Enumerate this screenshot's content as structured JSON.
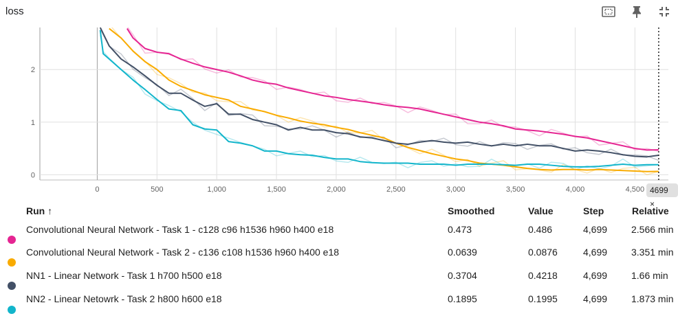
{
  "panel": {
    "title": "loss",
    "step_badge": "4699",
    "step_badge_close": "×"
  },
  "table": {
    "headers": {
      "run": "Run",
      "sort_arrow": "↑",
      "smoothed": "Smoothed",
      "value": "Value",
      "step": "Step",
      "relative": "Relative"
    },
    "rows": [
      {
        "name": "Convolutional Neural Network - Task 1 - c128 c96 h1536 h960 h400 e18",
        "smoothed": "0.473",
        "value": "0.486",
        "step": "4,699",
        "relative": "2.566 min",
        "color": "#e52592"
      },
      {
        "name": "Convolutional Neural Network - Task 2 - c136 c108 h1536 h960 h400 e18",
        "smoothed": "0.0639",
        "value": "0.0876",
        "step": "4,699",
        "relative": "3.351 min",
        "color": "#f9ab00"
      },
      {
        "name": "NN1 - Linear Network - Task 1 h700 h500 e18",
        "smoothed": "0.3704",
        "value": "0.4218",
        "step": "4,699",
        "relative": "1.66 min",
        "color": "#425066"
      },
      {
        "name": "NN2 - Linear Netowrk - Task 2 h800 h600 e18",
        "smoothed": "0.1895",
        "value": "0.1995",
        "step": "4,699",
        "relative": "1.873 min",
        "color": "#12b5cb"
      }
    ]
  },
  "chart_data": {
    "type": "line",
    "title": "loss",
    "xlim": [
      -480,
      4780
    ],
    "ylim": [
      -0.1,
      2.8
    ],
    "x_ticks": [
      0,
      500,
      1000,
      1500,
      2000,
      2500,
      3000,
      3500,
      4000,
      4500
    ],
    "x_tick_labels": [
      "0",
      "500",
      "1,000",
      "1,500",
      "2,000",
      "2,500",
      "3,000",
      "3,500",
      "4,000",
      "4,500"
    ],
    "y_ticks": [
      0,
      1,
      2
    ],
    "y_tick_labels": [
      "0",
      "1",
      "2"
    ],
    "grid": true,
    "cursor_step": 4699,
    "series": [
      {
        "name": "Convolutional Neural Network - Task 1 - c128 c96 h1536 h960 h400 e18",
        "color": "#e52592",
        "x": [
          250,
          300,
          400,
          500,
          600,
          700,
          800,
          900,
          1000,
          1100,
          1200,
          1300,
          1400,
          1500,
          1600,
          1700,
          1800,
          1900,
          2000,
          2100,
          2200,
          2300,
          2400,
          2500,
          2600,
          2700,
          2800,
          2900,
          3000,
          3100,
          3200,
          3300,
          3400,
          3500,
          3600,
          3700,
          3800,
          3900,
          4000,
          4100,
          4200,
          4300,
          4400,
          4500,
          4600,
          4699
        ],
        "y": [
          2.78,
          2.6,
          2.4,
          2.33,
          2.3,
          2.2,
          2.12,
          2.05,
          2.0,
          1.95,
          1.88,
          1.8,
          1.75,
          1.72,
          1.65,
          1.6,
          1.55,
          1.5,
          1.47,
          1.43,
          1.4,
          1.37,
          1.33,
          1.3,
          1.28,
          1.25,
          1.2,
          1.15,
          1.1,
          1.05,
          1.0,
          0.97,
          0.93,
          0.87,
          0.85,
          0.83,
          0.8,
          0.77,
          0.73,
          0.7,
          0.65,
          0.6,
          0.55,
          0.5,
          0.47,
          0.473
        ]
      },
      {
        "name": "Convolutional Neural Network - Task 2 - c136 c108 h1536 h960 h400 e18",
        "color": "#f9ab00",
        "x": [
          100,
          200,
          300,
          400,
          500,
          600,
          700,
          800,
          900,
          1000,
          1100,
          1200,
          1300,
          1400,
          1500,
          1600,
          1700,
          1800,
          1900,
          2000,
          2100,
          2200,
          2300,
          2400,
          2500,
          2600,
          2700,
          2800,
          2900,
          3000,
          3100,
          3200,
          3300,
          3400,
          3500,
          3600,
          3700,
          3800,
          3900,
          4000,
          4100,
          4200,
          4300,
          4400,
          4500,
          4600,
          4699
        ],
        "y": [
          2.78,
          2.6,
          2.35,
          2.15,
          2.0,
          1.8,
          1.68,
          1.6,
          1.52,
          1.47,
          1.42,
          1.3,
          1.25,
          1.2,
          1.13,
          1.08,
          1.02,
          0.98,
          0.95,
          0.9,
          0.86,
          0.8,
          0.75,
          0.7,
          0.6,
          0.52,
          0.46,
          0.4,
          0.35,
          0.3,
          0.27,
          0.22,
          0.2,
          0.18,
          0.15,
          0.12,
          0.1,
          0.09,
          0.1,
          0.1,
          0.09,
          0.1,
          0.09,
          0.08,
          0.07,
          0.06,
          0.064
        ]
      },
      {
        "name": "NN1 - Linear Network - Task 1 h700 h500 e18",
        "color": "#425066",
        "x": [
          25,
          100,
          200,
          300,
          400,
          500,
          600,
          700,
          800,
          900,
          1000,
          1100,
          1200,
          1300,
          1400,
          1500,
          1600,
          1700,
          1800,
          1900,
          2000,
          2100,
          2200,
          2300,
          2400,
          2500,
          2600,
          2700,
          2800,
          2900,
          3000,
          3100,
          3200,
          3300,
          3400,
          3500,
          3600,
          3700,
          3800,
          3900,
          4000,
          4100,
          4200,
          4300,
          4400,
          4500,
          4600,
          4699
        ],
        "y": [
          2.8,
          2.45,
          2.2,
          2.05,
          1.88,
          1.7,
          1.55,
          1.55,
          1.42,
          1.3,
          1.35,
          1.15,
          1.15,
          1.05,
          1.0,
          0.95,
          0.85,
          0.9,
          0.85,
          0.85,
          0.8,
          0.78,
          0.72,
          0.7,
          0.65,
          0.6,
          0.58,
          0.62,
          0.65,
          0.62,
          0.6,
          0.62,
          0.58,
          0.55,
          0.58,
          0.55,
          0.58,
          0.55,
          0.55,
          0.5,
          0.45,
          0.47,
          0.45,
          0.42,
          0.38,
          0.35,
          0.34,
          0.37
        ]
      },
      {
        "name": "NN2 - Linear Netowrk - Task 2 h800 h600 e18",
        "color": "#12b5cb",
        "x": [
          25,
          50,
          100,
          200,
          300,
          400,
          500,
          600,
          700,
          800,
          900,
          1000,
          1100,
          1200,
          1300,
          1400,
          1500,
          1600,
          1700,
          1800,
          1900,
          2000,
          2100,
          2200,
          2300,
          2400,
          2500,
          2600,
          2700,
          2800,
          2900,
          3000,
          3100,
          3200,
          3300,
          3400,
          3500,
          3600,
          3700,
          3800,
          3900,
          4000,
          4100,
          4200,
          4300,
          4400,
          4500,
          4600,
          4699
        ],
        "y": [
          2.75,
          2.3,
          2.2,
          2.0,
          1.8,
          1.62,
          1.43,
          1.25,
          1.22,
          0.95,
          0.87,
          0.85,
          0.63,
          0.6,
          0.55,
          0.45,
          0.45,
          0.4,
          0.38,
          0.37,
          0.33,
          0.3,
          0.3,
          0.25,
          0.23,
          0.22,
          0.22,
          0.22,
          0.2,
          0.2,
          0.2,
          0.18,
          0.2,
          0.2,
          0.2,
          0.19,
          0.18,
          0.2,
          0.2,
          0.18,
          0.16,
          0.15,
          0.15,
          0.16,
          0.18,
          0.2,
          0.18,
          0.19,
          0.19
        ]
      }
    ]
  }
}
